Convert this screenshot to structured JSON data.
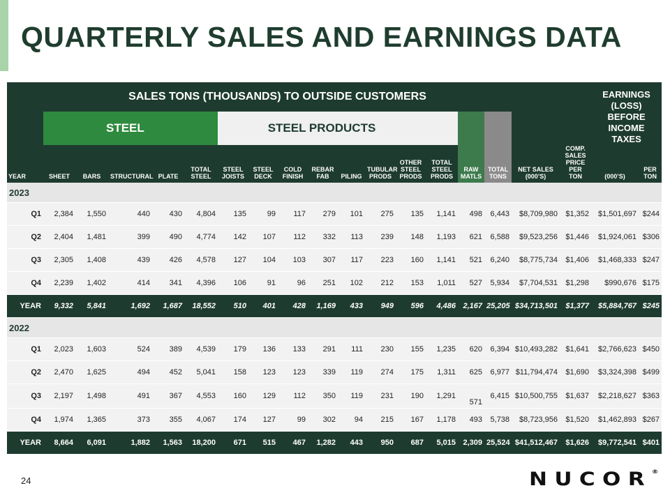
{
  "title": "QUARTERLY SALES AND EARNINGS DATA",
  "header": {
    "group": "SALES TONS (THOUSANDS) TO OUTSIDE CUSTOMERS",
    "steel": "STEEL",
    "steel_products": "STEEL PRODUCTS",
    "earnings": "EARNINGS (LOSS) BEFORE INCOME TAXES",
    "columns": [
      "YEAR",
      "SHEET",
      "BARS",
      "STRUCTURAL",
      "PLATE",
      "TOTAL STEEL",
      "STEEL JOISTS",
      "STEEL DECK",
      "COLD FINISH",
      "REBAR FAB",
      "PILING",
      "TUBULAR PRODS",
      "OTHER STEEL PRODS",
      "TOTAL STEEL PRODS",
      "RAW MATLS",
      "TOTAL TONS",
      "NET SALES (000’S)",
      "COMP. SALES PRICE PER TON",
      "(000’S)",
      "PER TON"
    ]
  },
  "sections": [
    {
      "year": "2023",
      "rows": [
        [
          "Q1",
          "2,384",
          "1,550",
          "440",
          "430",
          "4,804",
          "135",
          "99",
          "117",
          "279",
          "101",
          "275",
          "135",
          "1,141",
          "498",
          "6,443",
          "$8,709,980",
          "$1,352",
          "$1,501,697",
          "$244"
        ],
        [
          "Q2",
          "2,404",
          "1,481",
          "399",
          "490",
          "4,774",
          "142",
          "107",
          "112",
          "332",
          "113",
          "239",
          "148",
          "1,193",
          "621",
          "6,588",
          "$9,523,256",
          "$1,446",
          "$1,924,061",
          "$306"
        ],
        [
          "Q3",
          "2,305",
          "1,408",
          "439",
          "426",
          "4,578",
          "127",
          "104",
          "103",
          "307",
          "117",
          "223",
          "160",
          "1,141",
          "521",
          "6,240",
          "$8,775,734",
          "$1,406",
          "$1,468,333",
          "$247"
        ],
        [
          "Q4",
          "2,239",
          "1,402",
          "414",
          "341",
          "4,396",
          "106",
          "91",
          "96",
          "251",
          "102",
          "212",
          "153",
          "1,011",
          "527",
          "5,934",
          "$7,704,531",
          "$1,298",
          "$990,676",
          "$175"
        ],
        [
          "YEAR",
          "9,332",
          "5,841",
          "1,692",
          "1,687",
          "18,552",
          "510",
          "401",
          "428",
          "1,169",
          "433",
          "949",
          "596",
          "4,486",
          "2,167",
          "25,205",
          "$34,713,501",
          "$1,377",
          "$5,884,767",
          "$245"
        ]
      ]
    },
    {
      "year": "2022",
      "rows": [
        [
          "Q1",
          "2,023",
          "1,603",
          "524",
          "389",
          "4,539",
          "179",
          "136",
          "133",
          "291",
          "111",
          "230",
          "155",
          "1,235",
          "620",
          "6,394",
          "$10,493,282",
          "$1,641",
          "$2,766,623",
          "$450"
        ],
        [
          "Q2",
          "2,470",
          "1,625",
          "494",
          "452",
          "5,041",
          "158",
          "123",
          "123",
          "339",
          "119",
          "274",
          "175",
          "1,311",
          "625",
          "6,977",
          "$11,794,474",
          "$1,690",
          "$3,324,398",
          "$499"
        ],
        [
          "Q3",
          "2,197",
          "1,498",
          "491",
          "367",
          "4,553",
          "160",
          "129",
          "112",
          "350",
          "119",
          "231",
          "190",
          "1,291",
          "571",
          "6,415",
          "$10,500,755",
          "$1,637",
          "$2,218,627",
          "$363"
        ],
        [
          "Q4",
          "1,974",
          "1,365",
          "373",
          "355",
          "4,067",
          "174",
          "127",
          "99",
          "302",
          "94",
          "215",
          "167",
          "1,178",
          "493",
          "5,738",
          "$8,723,956",
          "$1,520",
          "$1,462,893",
          "$267"
        ],
        [
          "YEAR",
          "8,664",
          "6,091",
          "1,882",
          "1,563",
          "18,200",
          "671",
          "515",
          "467",
          "1,282",
          "443",
          "950",
          "687",
          "5,015",
          "2,309",
          "25,524",
          "$41,512,467",
          "$1,626",
          "$9,772,541",
          "$401"
        ]
      ]
    }
  ],
  "page_number": "24",
  "logo": "NUCOR",
  "logo_mark": "®"
}
